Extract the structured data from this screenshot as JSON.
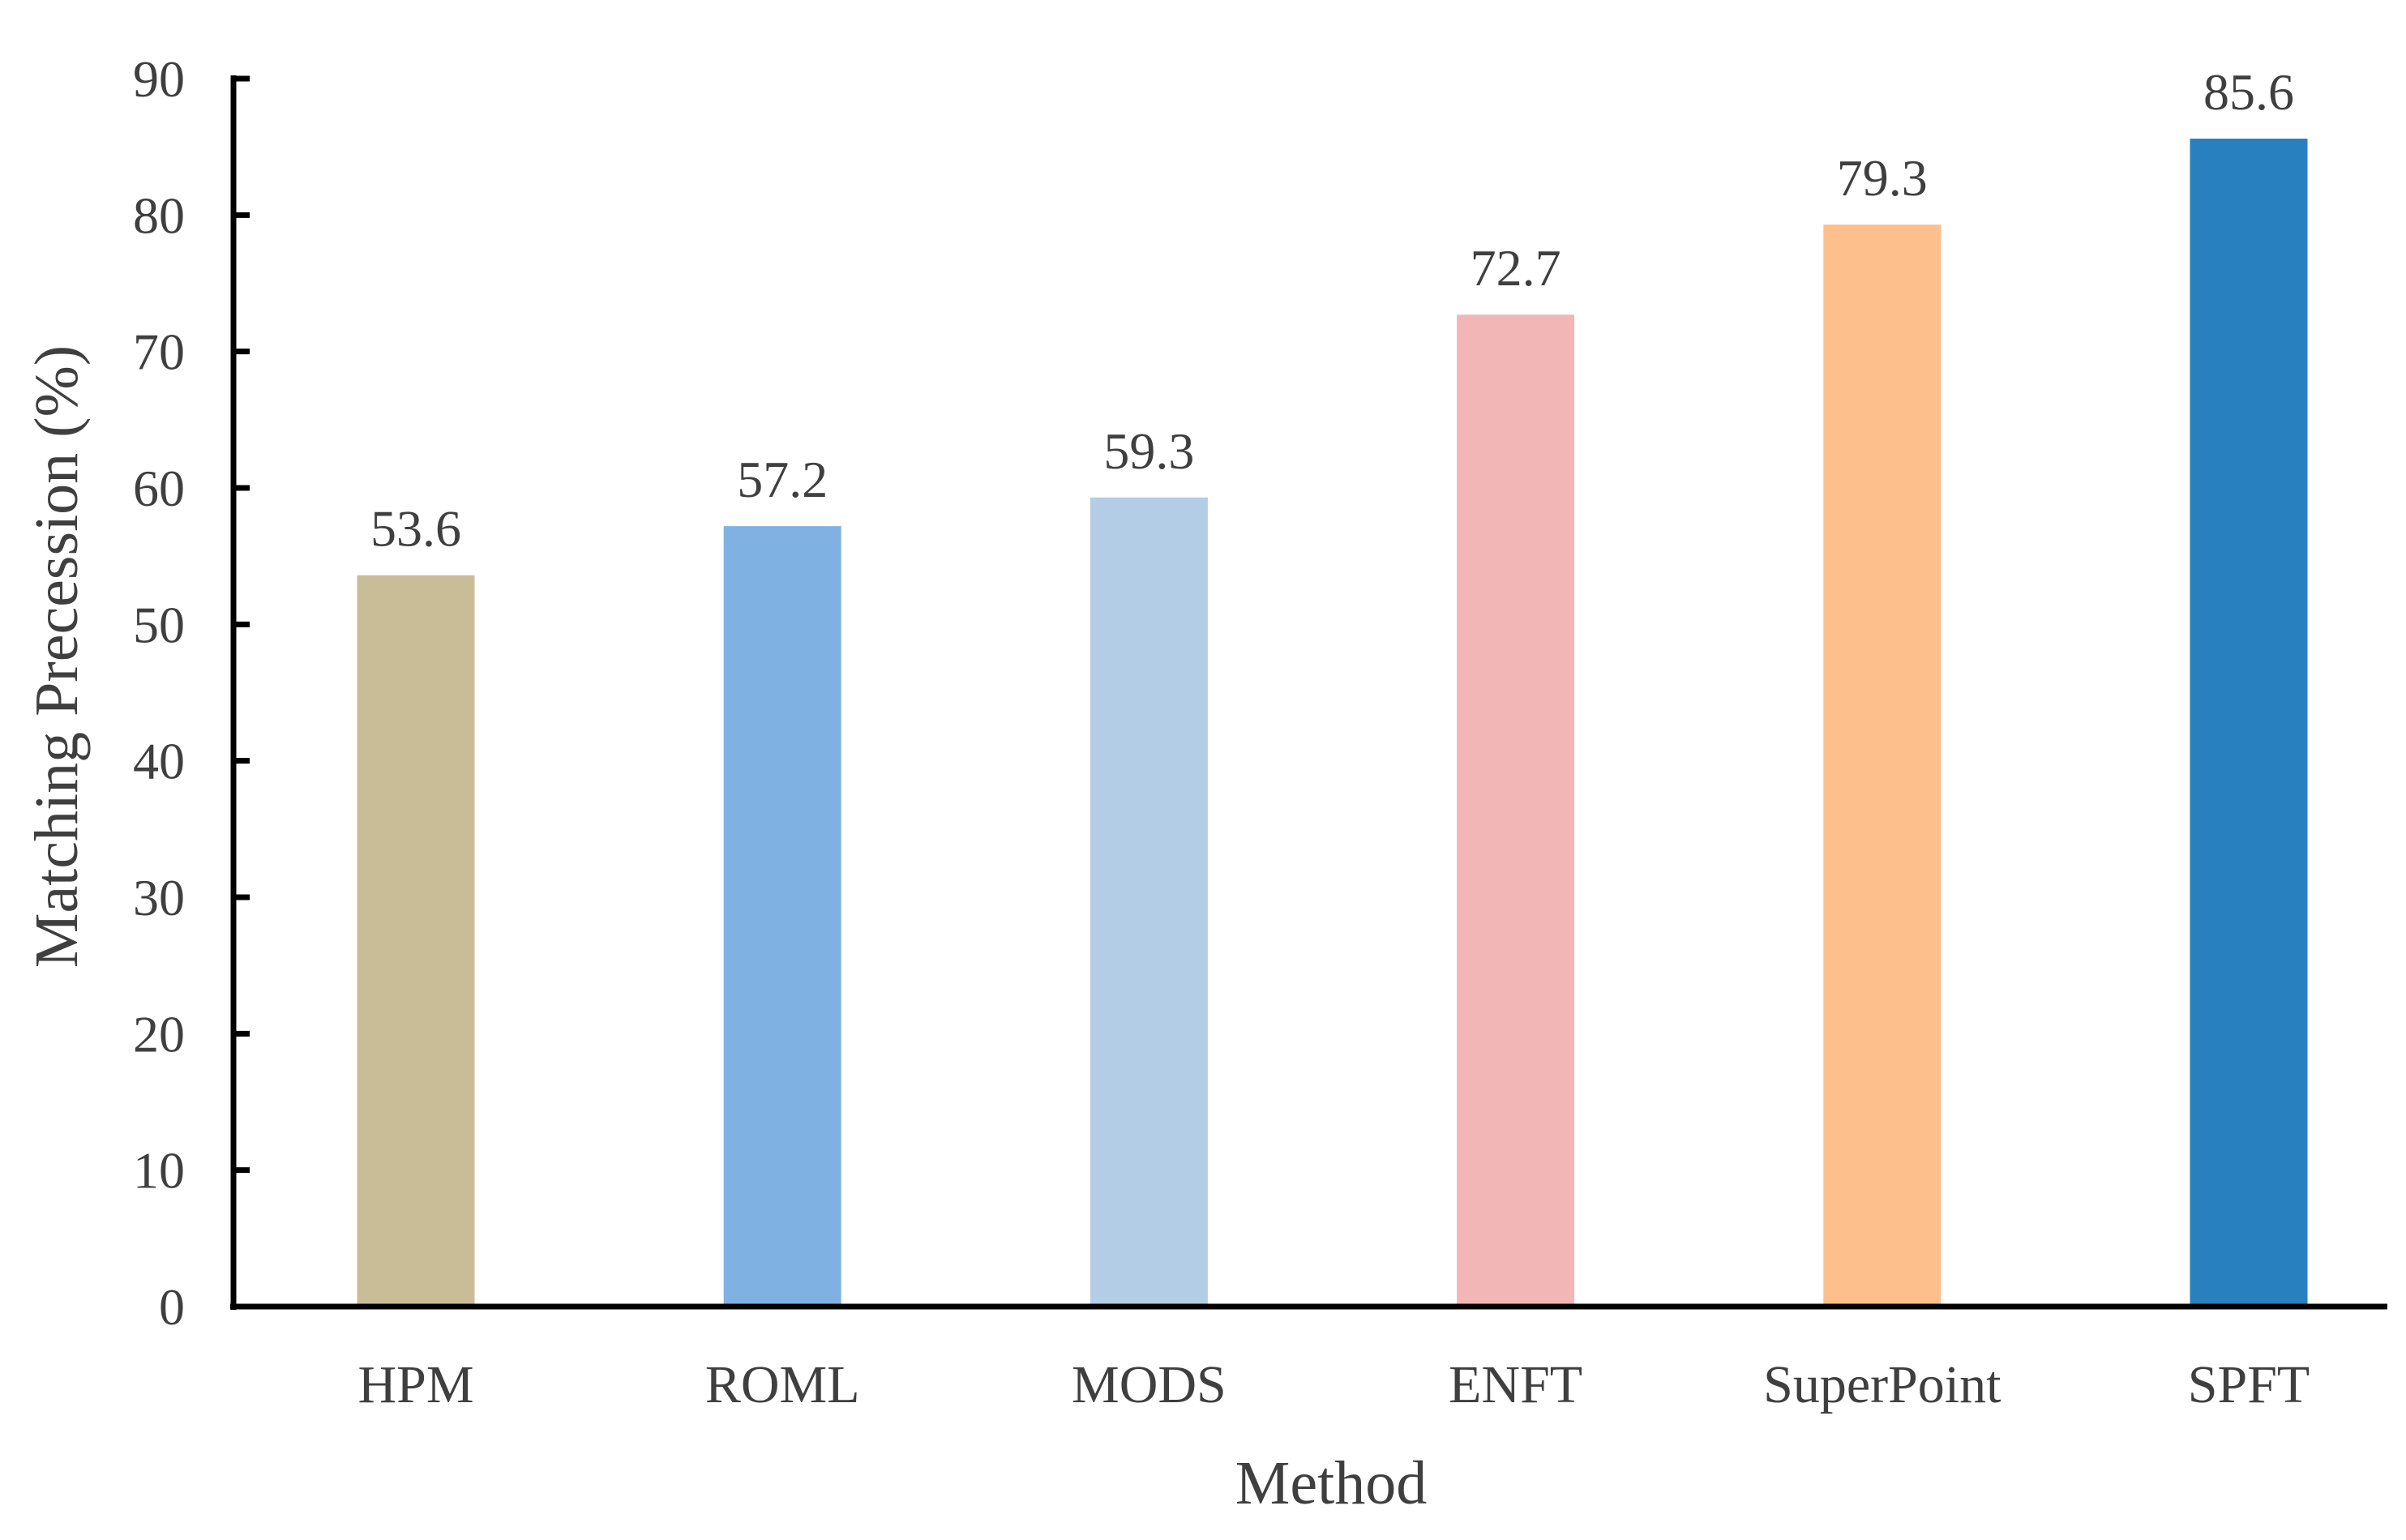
{
  "chart_data": {
    "type": "bar",
    "xlabel": "Method",
    "ylabel": "Matching Precession (%)",
    "ylim": [
      0,
      90
    ],
    "yticks": [
      0,
      10,
      20,
      30,
      40,
      50,
      60,
      70,
      80,
      90
    ],
    "categories": [
      "HPM",
      "ROML",
      "MODS",
      "ENFT",
      "SuperPoint",
      "SPFT"
    ],
    "values": [
      53.6,
      57.2,
      59.3,
      72.7,
      79.3,
      85.6
    ],
    "value_labels": [
      "53.6",
      "57.2",
      "59.3",
      "72.7",
      "79.3",
      "85.6"
    ],
    "colors": [
      "#c9bd98",
      "#7fb2e3",
      "#b3cde6",
      "#f3b6b7",
      "#fdbf8b",
      "#2880be"
    ],
    "grid": false,
    "legend": "none"
  }
}
